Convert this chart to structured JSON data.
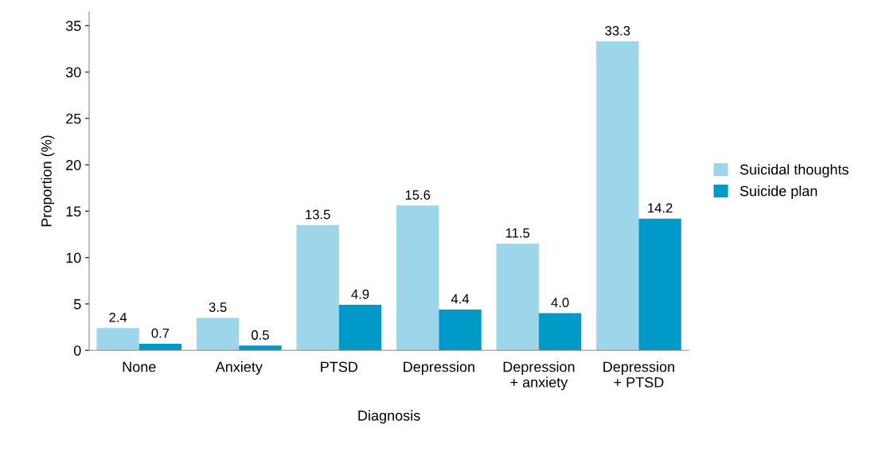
{
  "chart_data": {
    "type": "bar",
    "xlabel": "Diagnosis",
    "ylabel": "Proportion (%)",
    "categories": [
      "None",
      "Anxiety",
      "PTSD",
      "Depression",
      "Depression\n+ anxiety",
      "Depression\n+ PTSD"
    ],
    "series": [
      {
        "name": "Suicidal thoughts",
        "color": "#9dd6ea",
        "values": [
          2.4,
          3.5,
          13.5,
          15.6,
          11.5,
          33.3
        ],
        "value_labels": [
          "2.4",
          "3.5",
          "13.5",
          "15.6",
          "11.5",
          "33.3"
        ]
      },
      {
        "name": "Suicide plan",
        "color": "#0099c8",
        "values": [
          0.7,
          0.5,
          4.9,
          4.4,
          4.0,
          14.2
        ],
        "value_labels": [
          "0.7",
          "0.5",
          "4.9",
          "4.4",
          "4.0",
          "14.2"
        ]
      }
    ],
    "ylim": [
      0,
      36.5
    ],
    "yticks": [
      0,
      5,
      10,
      15,
      20,
      25,
      30,
      35
    ],
    "legend": "right",
    "grid": false
  }
}
